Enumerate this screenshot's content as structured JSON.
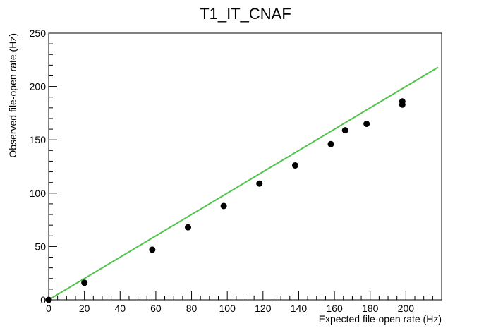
{
  "chart_data": {
    "type": "scatter",
    "title": "T1_IT_CNAF",
    "xlabel": "Expected file-open rate (Hz)",
    "ylabel": "Observed file-open rate (Hz)",
    "xlim": [
      0,
      220
    ],
    "ylim": [
      0,
      250
    ],
    "x_ticks": [
      "0",
      "20",
      "40",
      "60",
      "80",
      "100",
      "120",
      "140",
      "160",
      "180",
      "200"
    ],
    "y_ticks": [
      "0",
      "50",
      "100",
      "150",
      "200",
      "250"
    ],
    "grid": false,
    "series": [
      {
        "type": "scatter",
        "color": "#000000",
        "points": [
          {
            "x": 0,
            "y": 0
          },
          {
            "x": 20,
            "y": 16
          },
          {
            "x": 58,
            "y": 47
          },
          {
            "x": 78,
            "y": 68
          },
          {
            "x": 98,
            "y": 88
          },
          {
            "x": 118,
            "y": 109
          },
          {
            "x": 138,
            "y": 126
          },
          {
            "x": 158,
            "y": 146
          },
          {
            "x": 166,
            "y": 159
          },
          {
            "x": 178,
            "y": 165
          },
          {
            "x": 198,
            "y": 183
          },
          {
            "x": 198,
            "y": 186
          }
        ]
      },
      {
        "type": "line",
        "color": "#4fc34a",
        "points": [
          {
            "x": 0,
            "y": 0
          },
          {
            "x": 218,
            "y": 218
          }
        ]
      }
    ]
  }
}
